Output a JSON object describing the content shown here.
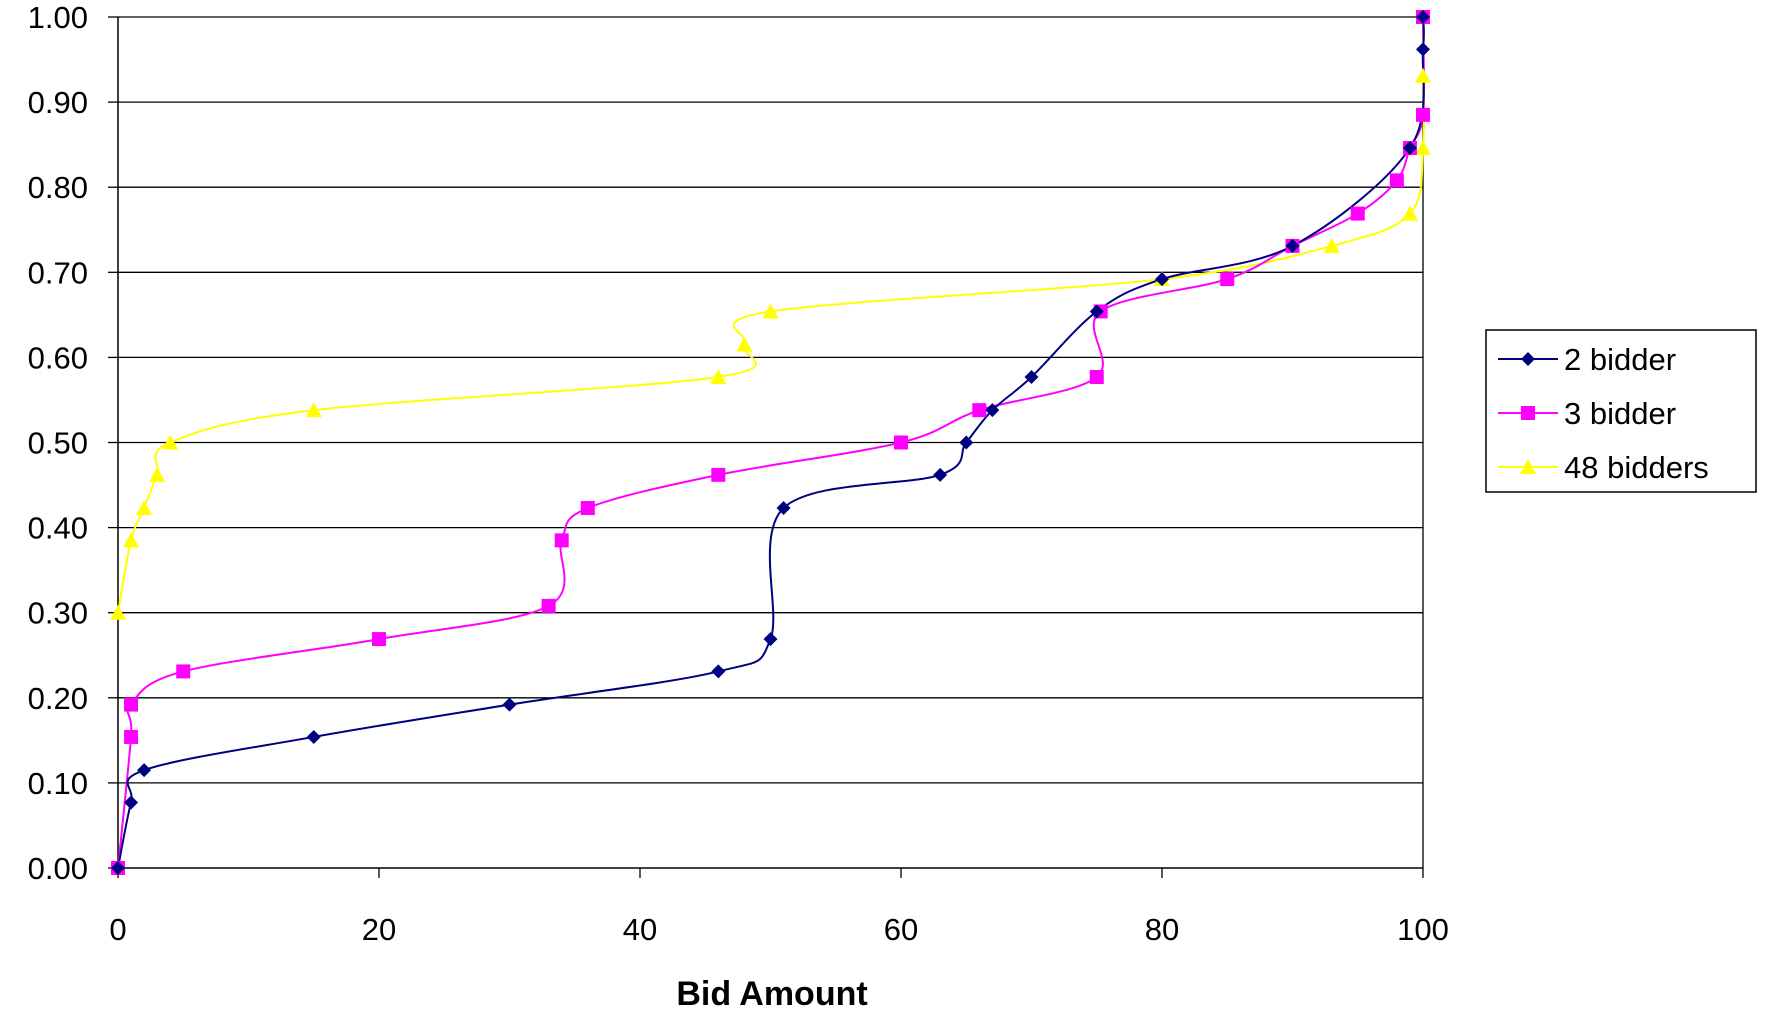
{
  "chart_data": {
    "type": "line",
    "title": "",
    "xlabel": "Bid Amount",
    "ylabel": "",
    "xlim": [
      0,
      100
    ],
    "ylim": [
      0,
      1
    ],
    "x_ticks": [
      0,
      20,
      40,
      60,
      80,
      100
    ],
    "x_tick_labels": [
      "0",
      "20",
      "40",
      "60",
      "80",
      "100"
    ],
    "y_ticks": [
      0,
      0.1,
      0.2,
      0.3,
      0.4,
      0.5,
      0.6,
      0.7,
      0.8,
      0.9,
      1.0
    ],
    "y_tick_labels": [
      "0.00",
      "0.10",
      "0.20",
      "0.30",
      "0.40",
      "0.50",
      "0.60",
      "0.70",
      "0.80",
      "0.90",
      "1.00"
    ],
    "grid": "horizontal",
    "legend_position": "right",
    "smooth": true,
    "series": [
      {
        "name": "2 bidder",
        "color": "#000080",
        "marker": "diamond",
        "x": [
          0,
          1,
          2,
          15,
          30,
          46,
          50,
          51,
          63,
          65,
          67,
          70,
          75,
          80,
          90,
          99,
          100,
          100
        ],
        "y": [
          0,
          0.077,
          0.115,
          0.154,
          0.192,
          0.231,
          0.269,
          0.423,
          0.462,
          0.5,
          0.538,
          0.577,
          0.654,
          0.692,
          0.731,
          0.846,
          0.962,
          1.0
        ]
      },
      {
        "name": "3 bidder",
        "color": "#ff00ff",
        "marker": "square",
        "x": [
          0,
          1,
          1,
          5,
          20,
          33,
          34,
          36,
          46,
          60,
          66,
          75,
          75.3,
          85,
          90,
          95,
          98,
          99,
          100,
          100
        ],
        "y": [
          0,
          0.154,
          0.192,
          0.231,
          0.269,
          0.308,
          0.385,
          0.423,
          0.462,
          0.5,
          0.538,
          0.577,
          0.654,
          0.692,
          0.731,
          0.769,
          0.808,
          0.846,
          0.885,
          1.0
        ]
      },
      {
        "name": "48 bidders",
        "color": "#ffff00",
        "marker": "triangle",
        "x": [
          0,
          1,
          2,
          3,
          4,
          15,
          46,
          48,
          50,
          80,
          93,
          99,
          100,
          100,
          100
        ],
        "y": [
          0.3,
          0.385,
          0.423,
          0.462,
          0.5,
          0.538,
          0.577,
          0.615,
          0.654,
          0.692,
          0.731,
          0.769,
          0.846,
          0.931,
          1.0
        ]
      }
    ]
  }
}
